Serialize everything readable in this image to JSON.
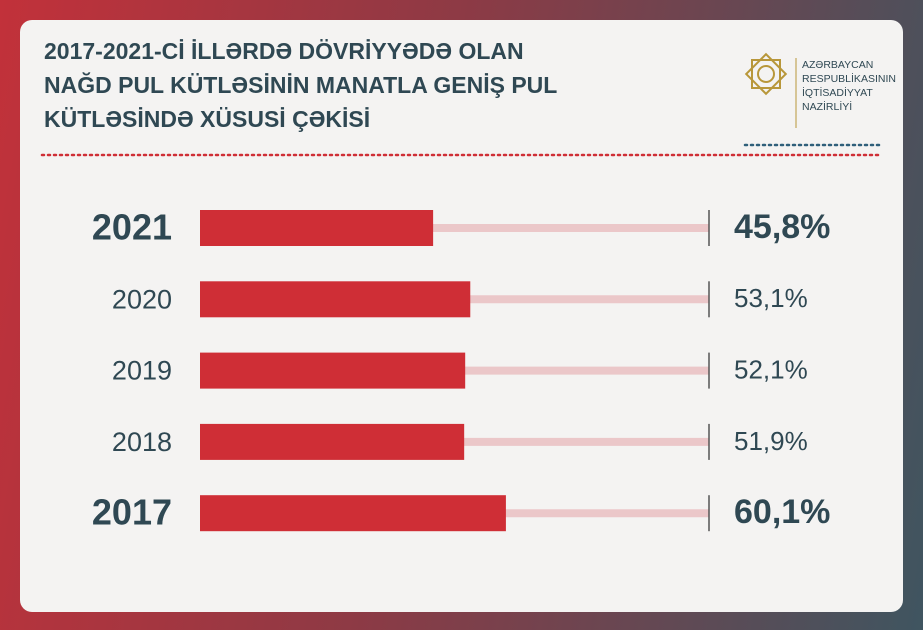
{
  "chart_data": {
    "type": "hbar",
    "title": [
      "2017-2021-Cİ İLLƏRDƏ DÖVRİYYƏDƏ OLAN",
      "NAĞD PUL KÜTLƏSİNİN MANATLA GENİŞ PUL",
      "KÜTLƏSİNDƏ XÜSUSİ ÇƏKİSİ"
    ],
    "categories": [
      "2021",
      "2020",
      "2019",
      "2018",
      "2017"
    ],
    "values": [
      45.8,
      53.1,
      52.1,
      51.9,
      60.1
    ],
    "value_labels": [
      "45,8%",
      "53,1%",
      "52,1%",
      "51,9%",
      "60,1%"
    ],
    "color": "#cf2e36",
    "track_color": "#ebc7c9",
    "xlim": [
      0,
      100
    ]
  },
  "logo": {
    "lines": [
      "AZƏRBAYCAN",
      "RESPUBLİKASININ",
      "İQTİSADİYYAT",
      "NAZİRLİYİ"
    ]
  }
}
